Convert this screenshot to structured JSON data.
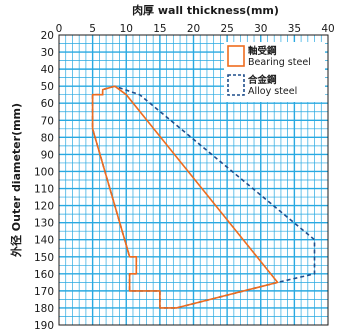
{
  "chart_data": {
    "type": "line",
    "xlabel": "肉厚 wall thickness(mm)",
    "ylabel": "外径 Outer diameter(mm)",
    "xlim": [
      0,
      40
    ],
    "ylim": [
      20,
      190
    ],
    "x_axis_position": "top",
    "y_axis_inverted": true,
    "grid": true,
    "grid_minor_x": 1,
    "grid_minor_y": 5,
    "x_ticks": [
      "0",
      "5",
      "10",
      "15",
      "20",
      "25",
      "30",
      "35",
      "40"
    ],
    "y_ticks": [
      "20",
      "30",
      "40",
      "50",
      "60",
      "70",
      "80",
      "90",
      "100",
      "110",
      "120",
      "130",
      "140",
      "150",
      "160",
      "170",
      "180",
      "190"
    ],
    "legend_position": "top-right",
    "colors": {
      "grid": "#29a9e1",
      "bearing": "#ef6c1e",
      "alloy": "#1f4e8c"
    },
    "series": [
      {
        "name_ja": "軸受鋼",
        "name": "Bearing steel",
        "style": "solid",
        "points": [
          [
            8.3,
            50
          ],
          [
            6.5,
            52
          ],
          [
            6.5,
            55
          ],
          [
            5,
            55
          ],
          [
            5,
            75
          ],
          [
            10.5,
            150
          ],
          [
            11.5,
            150
          ],
          [
            11.5,
            160
          ],
          [
            10.5,
            160
          ],
          [
            10.5,
            170
          ],
          [
            15,
            170
          ],
          [
            15,
            180
          ],
          [
            17.5,
            180
          ],
          [
            32.5,
            165
          ],
          [
            10,
            55
          ],
          [
            8.3,
            50
          ]
        ]
      },
      {
        "name_ja": "合金鋼",
        "name": "Alloy steel",
        "style": "dashed",
        "points": [
          [
            8.3,
            50
          ],
          [
            6.5,
            52
          ],
          [
            6.5,
            55
          ],
          [
            5,
            55
          ],
          [
            5,
            75
          ],
          [
            10.5,
            150
          ],
          [
            11.5,
            150
          ],
          [
            11.5,
            160
          ],
          [
            10.5,
            160
          ],
          [
            10.5,
            170
          ],
          [
            15,
            170
          ],
          [
            15,
            180
          ],
          [
            17.5,
            180
          ],
          [
            32.5,
            165
          ],
          [
            38,
            160
          ],
          [
            38,
            140
          ],
          [
            12,
            55
          ],
          [
            8.3,
            50
          ]
        ]
      }
    ]
  }
}
